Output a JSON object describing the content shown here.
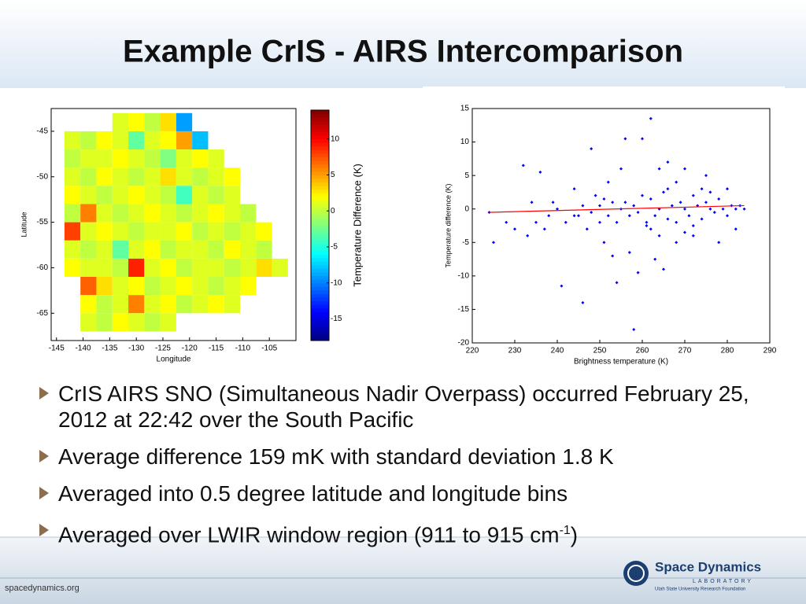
{
  "header": {
    "title": "Example CrIS - AIRS Intercomparison"
  },
  "chart_data": [
    {
      "type": "heatmap",
      "xlabel": "Longitude",
      "ylabel": "Latitude",
      "x": [
        -142,
        -139,
        -136,
        -133,
        -130,
        -127,
        -124,
        -121,
        -118,
        -115,
        -112,
        -109,
        -106,
        -103
      ],
      "y": [
        -44,
        -46,
        -48,
        -50,
        -52,
        -54,
        -56,
        -58,
        -60,
        -62,
        -64,
        -66
      ],
      "values": [
        [
          null,
          null,
          null,
          1,
          2,
          0,
          3,
          -9,
          null,
          null,
          null,
          null,
          null,
          null
        ],
        [
          1,
          0,
          2,
          1,
          -3,
          1,
          2,
          5,
          -8,
          null,
          null,
          null,
          null,
          null
        ],
        [
          0,
          1,
          1,
          2,
          1,
          0,
          -2,
          1,
          2,
          1,
          null,
          null,
          null,
          null
        ],
        [
          1,
          0,
          2,
          1,
          0,
          1,
          3,
          1,
          0,
          1,
          2,
          null,
          null,
          null
        ],
        [
          2,
          1,
          0,
          1,
          2,
          1,
          0,
          -4,
          1,
          0,
          1,
          null,
          null,
          null
        ],
        [
          0,
          6,
          1,
          0,
          1,
          2,
          1,
          0,
          1,
          2,
          1,
          0,
          null,
          null
        ],
        [
          8,
          1,
          2,
          1,
          0,
          1,
          1,
          2,
          0,
          1,
          0,
          1,
          2,
          null
        ],
        [
          1,
          0,
          1,
          -3,
          1,
          2,
          0,
          1,
          1,
          0,
          2,
          1,
          0,
          null
        ],
        [
          2,
          1,
          1,
          0,
          9,
          1,
          2,
          0,
          1,
          1,
          0,
          1,
          3,
          1
        ],
        [
          null,
          7,
          3,
          1,
          2,
          0,
          1,
          2,
          1,
          0,
          1,
          2,
          null,
          null
        ],
        [
          null,
          2,
          0,
          1,
          6,
          1,
          2,
          0,
          1,
          2,
          1,
          null,
          null,
          null
        ],
        [
          null,
          1,
          0,
          2,
          1,
          0,
          1,
          null,
          null,
          null,
          null,
          null,
          null,
          null
        ]
      ],
      "xlim": [
        -146,
        -100
      ],
      "ylim": [
        -68,
        -42.5
      ],
      "xticks": [
        -145,
        -140,
        -135,
        -130,
        -125,
        -120,
        -115,
        -110,
        -105
      ],
      "yticks": [
        -65,
        -60,
        -55,
        -50,
        -45
      ],
      "clim": [
        -18,
        14
      ],
      "cticks": [
        -15,
        -10,
        -5,
        0,
        5,
        10
      ],
      "clabel": "Temperature Difference (K)",
      "colormap": "jet"
    },
    {
      "type": "scatter",
      "xlabel": "Brightness temperature (K)",
      "ylabel": "Temperature difference (K)",
      "color": "#0000ff",
      "x": [
        224,
        225,
        228,
        230,
        232,
        233,
        234,
        235,
        236,
        237,
        238,
        239,
        240,
        241,
        242,
        244,
        245,
        246,
        247,
        248,
        249,
        250,
        251,
        252,
        253,
        254,
        255,
        256,
        257,
        258,
        259,
        260,
        261,
        262,
        263,
        264,
        265,
        266,
        268,
        270,
        272,
        275,
        278,
        280,
        282,
        255,
        256,
        257,
        258,
        259,
        260,
        261,
        262,
        263,
        264,
        265,
        266,
        267,
        268,
        269,
        270,
        271,
        272,
        273,
        274,
        275,
        276,
        277,
        278,
        279,
        280,
        281,
        282,
        283,
        284,
        252,
        253,
        254,
        250,
        251,
        248,
        246,
        244,
        262,
        266,
        270,
        274,
        268,
        264,
        276,
        272
      ],
      "values": [
        -0.5,
        -5,
        -2,
        -3,
        6.5,
        -4,
        1,
        -2,
        5.5,
        -3,
        -1,
        1,
        0,
        -11.5,
        -2,
        3,
        -1,
        -14,
        -3,
        9,
        2,
        -2,
        -5,
        4,
        -7,
        -11,
        6,
        10.5,
        -6.5,
        -18,
        -9.5,
        10.5,
        -2,
        13.5,
        -7.5,
        6,
        -9,
        7,
        -5,
        6,
        -4,
        5,
        -5,
        3,
        -3,
        0,
        1,
        -1,
        0.5,
        -0.5,
        2,
        -2.5,
        1.5,
        -1,
        0,
        2.5,
        -1.5,
        0.5,
        -2,
        1,
        0,
        -1,
        2,
        0.5,
        -1.5,
        1,
        0,
        -0.5,
        1.5,
        0,
        -1,
        0.5,
        0,
        0.5,
        0,
        -1,
        1,
        -2,
        0.5,
        1.5,
        -0.5,
        0.5,
        -1,
        -3,
        3,
        -3.5,
        3,
        4,
        -4,
        2.5,
        -2.5
      ],
      "fit": {
        "x": [
          224,
          284
        ],
        "values": [
          -0.5,
          0.5
        ],
        "color": "#ff0000"
      },
      "xlim": [
        220,
        290
      ],
      "ylim": [
        -20,
        15
      ],
      "xticks": [
        220,
        230,
        240,
        250,
        260,
        270,
        280,
        290
      ],
      "yticks": [
        -20,
        -15,
        -10,
        -5,
        0,
        5,
        10,
        15
      ]
    }
  ],
  "bullets": [
    "CrIS AIRS SNO (Simultaneous Nadir Overpass) occurred February 25, 2012 at 22:42 over the South Pacific",
    "Average difference 159 mK with standard deviation 1.8 K",
    "Averaged into 0.5 degree latitude and longitude bins"
  ],
  "last_bullet": {
    "text": "Averaged over LWIR window region (911 to 915 cm",
    "sup": "-1",
    "end": ")"
  },
  "footer": {
    "url": "spacedynamics.org",
    "logo": {
      "name": "Space Dynamics",
      "sub": "LABORATORY",
      "org": "Utah State University Research Foundation"
    }
  }
}
